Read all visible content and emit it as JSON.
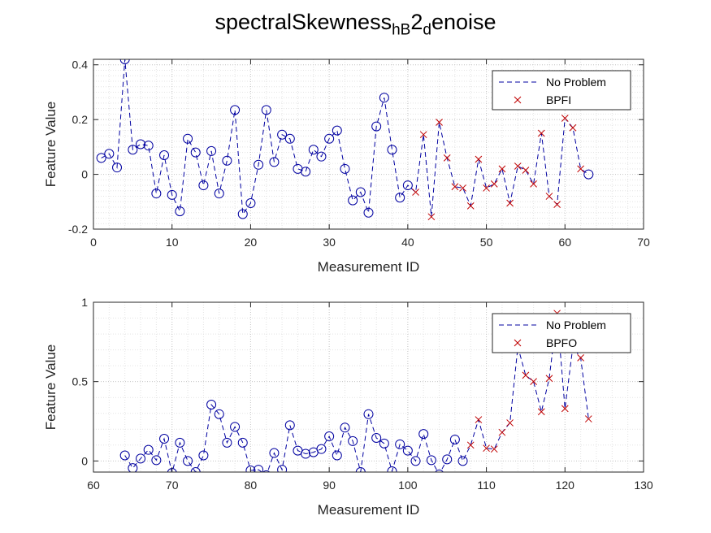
{
  "figure": {
    "title_main": "spectralSkewness",
    "title_sub1": "hB",
    "title_mid": "2",
    "title_sub2": "d",
    "title_end": "enoise"
  },
  "colors": {
    "normal": "#0000a0",
    "fault": "#c00000",
    "axis": "#262626",
    "grid": "#c8c8c8"
  },
  "chart_data": [
    {
      "type": "line",
      "xlabel": "Measurement ID",
      "ylabel": "Feature Value",
      "xlim": [
        0,
        70
      ],
      "ylim": [
        -0.2,
        0.42
      ],
      "xticks": [
        "0",
        "10",
        "20",
        "30",
        "40",
        "50",
        "60",
        "70"
      ],
      "yticks": [
        "-0.2",
        "0",
        "0.2",
        "0.4"
      ],
      "xtick_values": [
        0,
        10,
        20,
        30,
        40,
        50,
        60,
        70
      ],
      "ytick_values": [
        -0.2,
        0,
        0.2,
        0.4
      ],
      "grid": true,
      "legend_position": "top-right",
      "series": [
        {
          "name": "No Problem",
          "marker": "circle",
          "x": [
            1,
            2,
            3,
            4,
            5,
            6,
            7,
            8,
            9,
            10,
            11,
            12,
            13,
            14,
            15,
            16,
            17,
            18,
            19,
            20,
            21,
            22,
            23,
            24,
            25,
            26,
            27,
            28,
            29,
            30,
            31,
            32,
            33,
            34,
            35,
            36,
            37,
            38,
            39,
            40
          ],
          "values": [
            0.06,
            0.075,
            0.025,
            0.42,
            0.09,
            0.11,
            0.105,
            -0.07,
            0.07,
            -0.075,
            -0.135,
            0.13,
            0.08,
            -0.04,
            0.085,
            -0.07,
            0.05,
            0.235,
            -0.145,
            -0.105,
            0.035,
            0.235,
            0.045,
            0.145,
            0.13,
            0.02,
            0.01,
            0.09,
            0.065,
            0.13,
            0.16,
            0.02,
            -0.095,
            -0.065,
            -0.14,
            0.175,
            0.28,
            0.09,
            -0.085,
            -0.04
          ]
        },
        {
          "name": "BPFI",
          "marker": "x",
          "x": [
            41,
            42,
            43,
            44,
            45,
            46,
            47,
            48,
            49,
            50,
            51,
            52,
            53,
            54,
            55,
            56,
            57,
            58,
            59,
            60,
            61,
            62
          ],
          "values": [
            -0.065,
            0.145,
            -0.155,
            0.19,
            0.06,
            -0.045,
            -0.05,
            -0.115,
            0.055,
            -0.05,
            -0.035,
            0.02,
            -0.105,
            0.03,
            0.015,
            -0.035,
            0.15,
            -0.08,
            -0.11,
            0.205,
            0.17,
            0.02
          ]
        },
        {
          "name": "",
          "marker": "circle",
          "x": [
            63
          ],
          "values": [
            0.0
          ]
        }
      ],
      "legend": [
        "No Problem",
        "BPFI"
      ]
    },
    {
      "type": "line",
      "xlabel": "Measurement ID",
      "ylabel": "Feature Value",
      "xlim": [
        60,
        130
      ],
      "ylim": [
        -0.07,
        1.0
      ],
      "xticks": [
        "60",
        "70",
        "80",
        "90",
        "100",
        "110",
        "120",
        "130"
      ],
      "yticks": [
        "0",
        "0.5",
        "1"
      ],
      "xtick_values": [
        60,
        70,
        80,
        90,
        100,
        110,
        120,
        130
      ],
      "ytick_values": [
        0,
        0.5,
        1
      ],
      "grid": true,
      "legend_position": "top-right",
      "series": [
        {
          "name": "No Problem",
          "marker": "circle",
          "x": [
            64,
            65,
            66,
            67,
            68,
            69,
            70,
            71,
            72,
            73,
            74,
            75,
            76,
            77,
            78,
            79,
            80,
            81,
            82,
            83,
            84,
            85,
            86,
            87,
            88,
            89,
            90,
            91,
            92,
            93,
            94,
            95,
            96,
            97,
            98,
            99,
            100,
            101,
            102,
            103,
            104,
            105,
            106,
            107
          ],
          "values": [
            0.035,
            -0.045,
            0.015,
            0.07,
            0.005,
            0.14,
            -0.075,
            0.115,
            0.0,
            -0.07,
            0.035,
            0.355,
            0.295,
            0.115,
            0.215,
            0.115,
            -0.06,
            -0.055,
            -0.09,
            0.05,
            -0.055,
            0.225,
            0.065,
            0.045,
            0.055,
            0.075,
            0.155,
            0.035,
            0.21,
            0.125,
            -0.07,
            0.295,
            0.145,
            0.11,
            -0.065,
            0.105,
            0.065,
            0.0,
            0.17,
            0.005,
            -0.085,
            0.01,
            0.135,
            0.0
          ]
        },
        {
          "name": "BPFO",
          "marker": "x",
          "x": [
            108,
            109,
            110,
            111,
            112,
            113,
            114,
            115,
            116,
            117,
            118,
            119,
            120,
            121,
            122,
            123
          ],
          "values": [
            0.1,
            0.26,
            0.08,
            0.075,
            0.18,
            0.24,
            0.72,
            0.54,
            0.5,
            0.31,
            0.52,
            0.93,
            0.33,
            0.72,
            0.65,
            0.265
          ]
        }
      ],
      "legend": [
        "No Problem",
        "BPFO"
      ]
    }
  ]
}
